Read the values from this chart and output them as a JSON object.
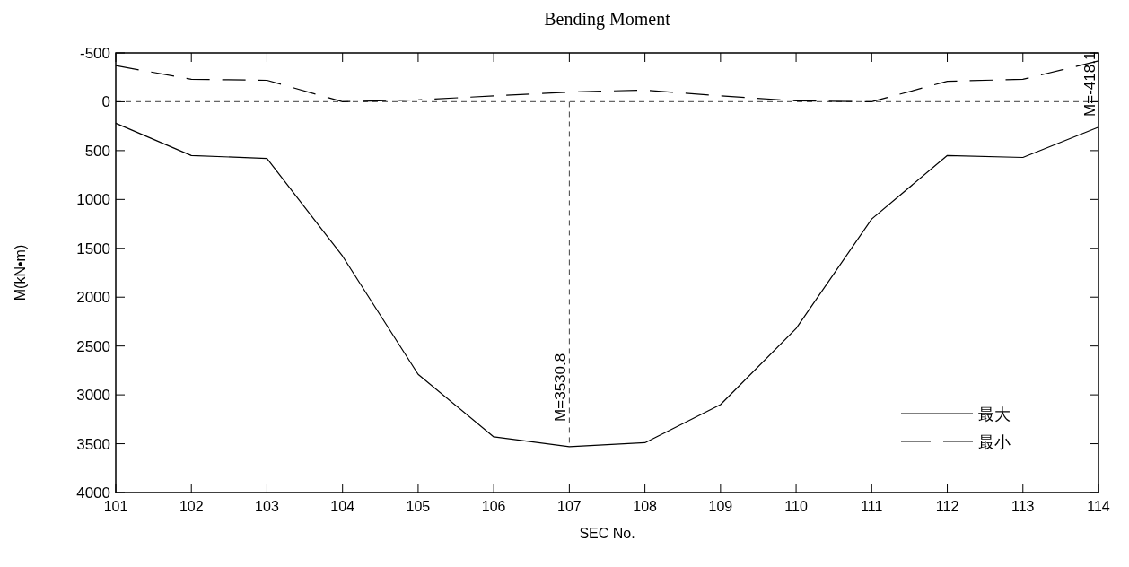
{
  "chart_data": {
    "type": "line",
    "title": "Bending Moment",
    "xlabel": "SEC No.",
    "ylabel": "M(kN•m)",
    "categories": [
      "101",
      "102",
      "103",
      "104",
      "105",
      "106",
      "107",
      "108",
      "109",
      "110",
      "111",
      "112",
      "113",
      "114"
    ],
    "series": [
      {
        "name": "最大",
        "color": "#000000",
        "line_style": "solid",
        "values": [
          220,
          550,
          580,
          1580,
          2790,
          3430,
          3530.8,
          3490,
          3100,
          2320,
          1200,
          550,
          570,
          260
        ]
      },
      {
        "name": "最小",
        "color": "#000000",
        "line_style": "dashed",
        "values": [
          -370,
          -230,
          -220,
          0,
          -20,
          -60,
          -100,
          -120,
          -60,
          -10,
          0,
          -210,
          -230,
          -418.1
        ]
      },
      {
        "color": "#444444",
        "line_style": "dotted",
        "x": [
          "107",
          "107"
        ],
        "values": [
          0,
          3530.8
        ]
      }
    ],
    "ylim": [
      4000,
      -500
    ],
    "yticks": [
      -500,
      0,
      500,
      1000,
      1500,
      2000,
      2500,
      3000,
      3500,
      4000
    ],
    "ref_lines": [
      {
        "axis": "y",
        "value": 0,
        "color": "#666666",
        "line_style": "dashed"
      }
    ],
    "annotations": [
      {
        "text": "M=3530.8",
        "x": "107",
        "y": 3530.8
      },
      {
        "text": "M=-418.1",
        "x": "114",
        "y": -418.1
      }
    ],
    "legend": "bottom right",
    "grid": false
  }
}
